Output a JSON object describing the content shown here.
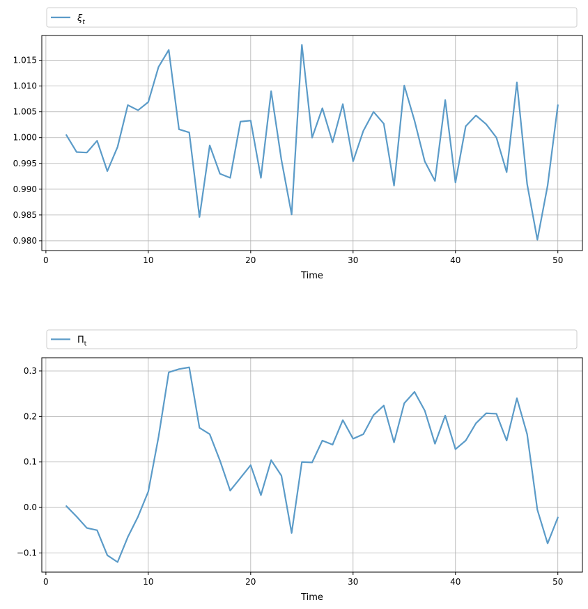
{
  "chart_data": [
    {
      "type": "line",
      "xlabel": "Time",
      "ylabel": "",
      "legend": {
        "placement": "top-outside",
        "symbol": "ξ",
        "subscript": "t"
      },
      "grid": true,
      "color": "#5b9bc8",
      "xlim": [
        -0.4,
        52.4
      ],
      "ylim": [
        0.9781,
        1.0198
      ],
      "xticks": [
        0,
        10,
        20,
        30,
        40,
        50
      ],
      "yticks": [
        0.98,
        0.985,
        0.99,
        0.995,
        1.0,
        1.005,
        1.01,
        1.015
      ],
      "ytick_labels": [
        "0.980",
        "0.985",
        "0.990",
        "0.995",
        "1.000",
        "1.005",
        "1.010",
        "1.015"
      ],
      "series": [
        {
          "x": [
            2,
            3,
            4,
            5,
            6,
            7,
            8,
            9,
            10,
            11,
            12,
            13,
            14,
            15,
            16,
            17,
            18,
            19,
            20,
            21,
            22,
            23,
            24,
            25,
            26,
            27,
            28,
            29,
            30,
            31,
            32,
            33,
            34,
            35,
            36,
            37,
            38,
            39,
            40,
            41,
            42,
            43,
            44,
            45,
            46,
            47,
            48,
            49,
            50
          ],
          "values": [
            1.0005,
            0.9972,
            0.9971,
            0.9994,
            0.9935,
            0.9982,
            1.0063,
            1.0053,
            1.0069,
            1.0137,
            1.017,
            1.0016,
            1.001,
            0.9846,
            0.9985,
            0.993,
            0.9922,
            1.0031,
            1.0033,
            0.9922,
            1.009,
            0.9957,
            0.9851,
            1.018,
            1.0,
            1.0057,
            0.9991,
            1.0065,
            0.9954,
            1.0013,
            1.005,
            1.0027,
            0.9907,
            1.0101,
            1.0033,
            0.9954,
            0.9916,
            1.0073,
            0.9913,
            1.0022,
            1.0043,
            1.0026,
            1.0,
            0.9933,
            1.0107,
            0.991,
            0.9802,
            0.9907,
            1.0063
          ]
        }
      ]
    },
    {
      "type": "line",
      "xlabel": "Time",
      "ylabel": "",
      "legend": {
        "placement": "top-outside",
        "symbol": "Π",
        "subscript": "t"
      },
      "grid": true,
      "color": "#5b9bc8",
      "xlim": [
        -0.4,
        52.4
      ],
      "ylim": [
        -0.142,
        0.329
      ],
      "xticks": [
        0,
        10,
        20,
        30,
        40,
        50
      ],
      "yticks": [
        -0.1,
        0.0,
        0.1,
        0.2,
        0.3
      ],
      "ytick_labels": [
        "−0.1",
        "0.0",
        "0.1",
        "0.2",
        "0.3"
      ],
      "series": [
        {
          "x": [
            2,
            3,
            4,
            5,
            6,
            7,
            8,
            9,
            10,
            11,
            12,
            13,
            14,
            15,
            16,
            17,
            18,
            19,
            20,
            21,
            22,
            23,
            24,
            25,
            26,
            27,
            28,
            29,
            30,
            31,
            32,
            33,
            34,
            35,
            36,
            37,
            38,
            39,
            40,
            41,
            42,
            43,
            44,
            45,
            46,
            47,
            48,
            49,
            50
          ],
          "values": [
            0.003,
            -0.02,
            -0.045,
            -0.05,
            -0.105,
            -0.12,
            -0.065,
            -0.02,
            0.035,
            0.155,
            0.297,
            0.304,
            0.308,
            0.175,
            0.161,
            0.103,
            0.037,
            0.065,
            0.093,
            0.027,
            0.104,
            0.07,
            -0.056,
            0.1,
            0.099,
            0.147,
            0.138,
            0.192,
            0.151,
            0.161,
            0.203,
            0.224,
            0.143,
            0.229,
            0.254,
            0.213,
            0.14,
            0.202,
            0.128,
            0.147,
            0.185,
            0.207,
            0.206,
            0.147,
            0.24,
            0.161,
            -0.005,
            -0.079,
            -0.022
          ]
        }
      ]
    }
  ]
}
